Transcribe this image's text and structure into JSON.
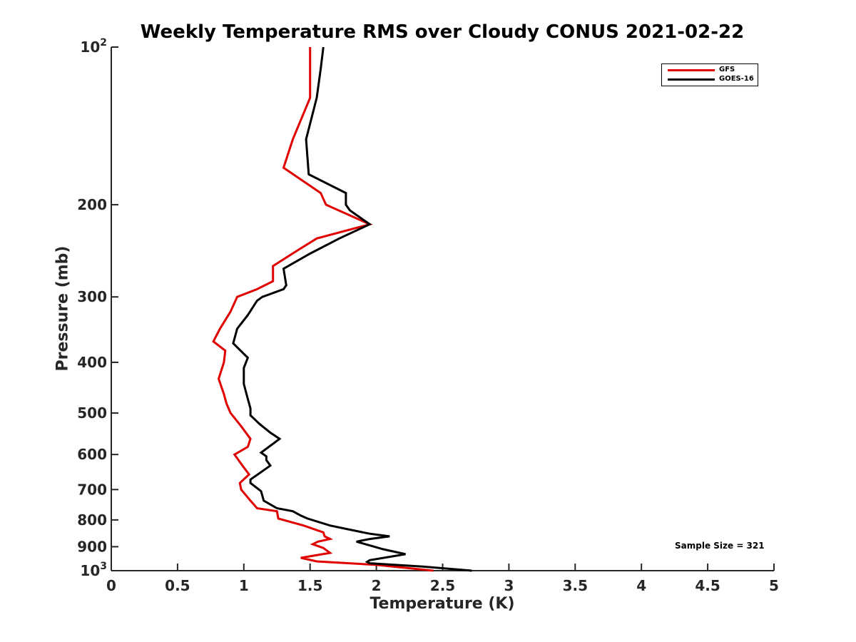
{
  "chart_data": {
    "type": "line",
    "title": "Weekly Temperature RMS over Cloudy CONUS 2021-02-22",
    "xlabel": "Temperature (K)",
    "ylabel": "Pressure (mb)",
    "xlim": [
      0,
      5
    ],
    "ylim": [
      100,
      1000
    ],
    "y_scale": "log",
    "y_reversed": true,
    "xticks": [
      0,
      0.5,
      1,
      1.5,
      2,
      2.5,
      3,
      3.5,
      4,
      4.5,
      5
    ],
    "xtick_labels": [
      "0",
      "0.5",
      "1",
      "1.5",
      "2",
      "2.5",
      "3",
      "3.5",
      "4",
      "4.5",
      "5"
    ],
    "yticks": [
      100,
      200,
      300,
      400,
      500,
      600,
      700,
      800,
      900,
      1000
    ],
    "ytick_labels": [
      {
        "base": "10",
        "exp": "2"
      },
      {
        "base": "200",
        "exp": ""
      },
      {
        "base": "300",
        "exp": ""
      },
      {
        "base": "400",
        "exp": ""
      },
      {
        "base": "500",
        "exp": ""
      },
      {
        "base": "600",
        "exp": ""
      },
      {
        "base": "700",
        "exp": ""
      },
      {
        "base": "800",
        "exp": ""
      },
      {
        "base": "900",
        "exp": ""
      },
      {
        "base": "10",
        "exp": "3"
      }
    ],
    "legend_position": "top-right",
    "annotation": "Sample Size = 321",
    "series": [
      {
        "name": "GFS",
        "color": "#e00000",
        "points": [
          [
            1.5,
            100
          ],
          [
            1.5,
            125
          ],
          [
            1.37,
            150
          ],
          [
            1.3,
            170
          ],
          [
            1.58,
            190
          ],
          [
            1.62,
            200
          ],
          [
            1.95,
            218
          ],
          [
            1.55,
            232
          ],
          [
            1.4,
            245
          ],
          [
            1.22,
            262
          ],
          [
            1.22,
            280
          ],
          [
            1.1,
            290
          ],
          [
            0.95,
            300
          ],
          [
            0.9,
            320
          ],
          [
            0.82,
            345
          ],
          [
            0.77,
            365
          ],
          [
            0.86,
            380
          ],
          [
            0.85,
            400
          ],
          [
            0.81,
            430
          ],
          [
            0.85,
            460
          ],
          [
            0.87,
            480
          ],
          [
            0.9,
            500
          ],
          [
            0.98,
            530
          ],
          [
            1.05,
            560
          ],
          [
            1.03,
            580
          ],
          [
            0.93,
            600
          ],
          [
            0.99,
            630
          ],
          [
            1.04,
            655
          ],
          [
            0.97,
            680
          ],
          [
            0.98,
            700
          ],
          [
            1.05,
            735
          ],
          [
            1.1,
            760
          ],
          [
            1.25,
            770
          ],
          [
            1.26,
            795
          ],
          [
            1.45,
            820
          ],
          [
            1.6,
            845
          ],
          [
            1.61,
            860
          ],
          [
            1.65,
            870
          ],
          [
            1.56,
            880
          ],
          [
            1.52,
            890
          ],
          [
            1.6,
            905
          ],
          [
            1.65,
            925
          ],
          [
            1.43,
            945
          ],
          [
            1.55,
            960
          ],
          [
            2.0,
            975
          ],
          [
            2.43,
            1000
          ]
        ]
      },
      {
        "name": "GOES-16",
        "color": "#000000",
        "points": [
          [
            1.6,
            100
          ],
          [
            1.58,
            110
          ],
          [
            1.55,
            125
          ],
          [
            1.47,
            150
          ],
          [
            1.49,
            175
          ],
          [
            1.77,
            190
          ],
          [
            1.77,
            200
          ],
          [
            1.8,
            205
          ],
          [
            1.95,
            218
          ],
          [
            1.72,
            232
          ],
          [
            1.5,
            248
          ],
          [
            1.3,
            265
          ],
          [
            1.32,
            285
          ],
          [
            1.3,
            290
          ],
          [
            1.14,
            300
          ],
          [
            1.1,
            305
          ],
          [
            1.03,
            325
          ],
          [
            0.95,
            345
          ],
          [
            0.92,
            368
          ],
          [
            1.03,
            392
          ],
          [
            1.0,
            410
          ],
          [
            1.0,
            440
          ],
          [
            1.03,
            470
          ],
          [
            1.05,
            490
          ],
          [
            1.05,
            505
          ],
          [
            1.12,
            525
          ],
          [
            1.2,
            545
          ],
          [
            1.27,
            560
          ],
          [
            1.13,
            595
          ],
          [
            1.17,
            605
          ],
          [
            1.17,
            615
          ],
          [
            1.2,
            630
          ],
          [
            1.05,
            670
          ],
          [
            1.05,
            680
          ],
          [
            1.13,
            705
          ],
          [
            1.15,
            735
          ],
          [
            1.25,
            760
          ],
          [
            1.37,
            770
          ],
          [
            1.43,
            785
          ],
          [
            1.48,
            795
          ],
          [
            1.65,
            820
          ],
          [
            1.8,
            835
          ],
          [
            1.95,
            850
          ],
          [
            2.1,
            860
          ],
          [
            1.95,
            870
          ],
          [
            1.85,
            880
          ],
          [
            1.95,
            895
          ],
          [
            2.05,
            910
          ],
          [
            2.22,
            930
          ],
          [
            1.95,
            955
          ],
          [
            1.93,
            962
          ],
          [
            1.95,
            968
          ],
          [
            2.35,
            982
          ],
          [
            2.72,
            1000
          ]
        ]
      }
    ]
  }
}
